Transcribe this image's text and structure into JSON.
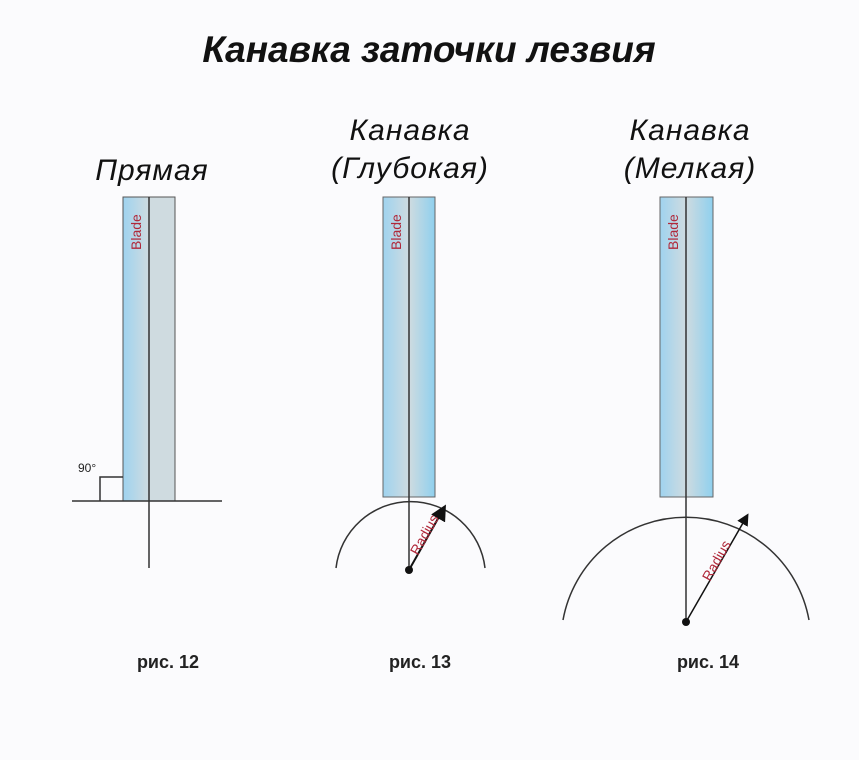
{
  "title": "Канавка заточки лезвия",
  "figures": [
    {
      "label_lines": [
        "Прямая"
      ],
      "blade_label": "Blade",
      "angle_label": "90°",
      "caption": "рис. 12"
    },
    {
      "label_lines": [
        "Канавка",
        "(Глубокая)"
      ],
      "blade_label": "Blade",
      "radius_label": "Radius",
      "caption": "рис. 13"
    },
    {
      "label_lines": [
        "Канавка",
        "(Мелкая)"
      ],
      "blade_label": "Blade",
      "radius_label": "Radius",
      "caption": "рис. 14"
    }
  ],
  "colors": {
    "blade_blue": "#a9d6ef",
    "blade_grey": "#cfdbe0",
    "label_red": "#b0283a"
  }
}
